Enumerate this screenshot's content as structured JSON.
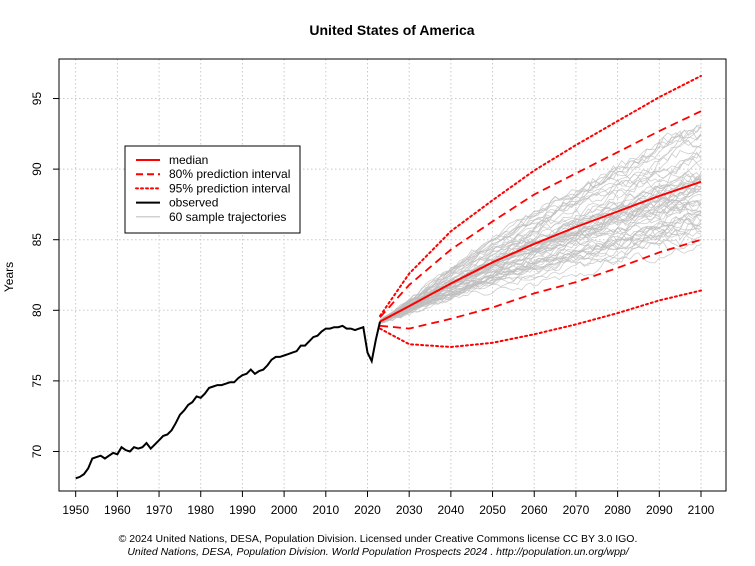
{
  "chart_data": {
    "type": "line",
    "title": "United States of America",
    "xlabel": "",
    "ylabel": "Years",
    "xlim": [
      1946,
      2106
    ],
    "ylim": [
      67.2,
      97.8
    ],
    "x_ticks": [
      1950,
      1960,
      1970,
      1980,
      1990,
      2000,
      2010,
      2020,
      2030,
      2040,
      2050,
      2060,
      2070,
      2080,
      2090,
      2100
    ],
    "y_ticks": [
      70,
      75,
      80,
      85,
      90,
      95
    ],
    "grid": true,
    "legend_position": "top-left",
    "legend": [
      {
        "label": "median",
        "color": "#ff0000",
        "style": "solid"
      },
      {
        "label": "80% prediction interval",
        "color": "#ff0000",
        "style": "dashed"
      },
      {
        "label": "95% prediction interval",
        "color": "#ff0000",
        "style": "dotted"
      },
      {
        "label": "observed",
        "color": "#000000",
        "style": "solid"
      },
      {
        "label": "60 sample trajectories",
        "color": "#c0c0c0",
        "style": "solid"
      }
    ],
    "observed": {
      "x": [
        1950,
        1951,
        1952,
        1953,
        1954,
        1955,
        1956,
        1957,
        1958,
        1959,
        1960,
        1961,
        1962,
        1963,
        1964,
        1965,
        1966,
        1967,
        1968,
        1969,
        1970,
        1971,
        1972,
        1973,
        1974,
        1975,
        1976,
        1977,
        1978,
        1979,
        1980,
        1981,
        1982,
        1983,
        1984,
        1985,
        1986,
        1987,
        1988,
        1989,
        1990,
        1991,
        1992,
        1993,
        1994,
        1995,
        1996,
        1997,
        1998,
        1999,
        2000,
        2001,
        2002,
        2003,
        2004,
        2005,
        2006,
        2007,
        2008,
        2009,
        2010,
        2011,
        2012,
        2013,
        2014,
        2015,
        2016,
        2017,
        2018,
        2019,
        2020,
        2021,
        2022,
        2023
      ],
      "y": [
        68.1,
        68.2,
        68.4,
        68.8,
        69.5,
        69.6,
        69.7,
        69.5,
        69.7,
        69.9,
        69.8,
        70.3,
        70.1,
        70.0,
        70.3,
        70.2,
        70.3,
        70.6,
        70.2,
        70.5,
        70.8,
        71.1,
        71.2,
        71.5,
        72.0,
        72.6,
        72.9,
        73.3,
        73.5,
        73.9,
        73.8,
        74.1,
        74.5,
        74.6,
        74.7,
        74.7,
        74.8,
        74.9,
        74.9,
        75.2,
        75.4,
        75.5,
        75.8,
        75.5,
        75.7,
        75.8,
        76.1,
        76.5,
        76.7,
        76.7,
        76.8,
        76.9,
        77.0,
        77.1,
        77.5,
        77.5,
        77.8,
        78.1,
        78.2,
        78.5,
        78.7,
        78.7,
        78.8,
        78.8,
        78.9,
        78.7,
        78.7,
        78.6,
        78.7,
        78.8,
        77.0,
        76.4,
        77.9,
        79.2
      ]
    },
    "median": {
      "x": [
        2023,
        2030,
        2040,
        2050,
        2060,
        2070,
        2080,
        2090,
        2100
      ],
      "y": [
        79.2,
        80.3,
        81.9,
        83.4,
        84.7,
        85.9,
        87.0,
        88.1,
        89.1
      ]
    },
    "pi80_upper": {
      "x": [
        2023,
        2030,
        2040,
        2050,
        2060,
        2070,
        2080,
        2090,
        2100
      ],
      "y": [
        79.5,
        81.8,
        84.3,
        86.3,
        88.2,
        89.7,
        91.2,
        92.7,
        94.1
      ]
    },
    "pi80_lower": {
      "x": [
        2023,
        2030,
        2040,
        2050,
        2060,
        2070,
        2080,
        2090,
        2100
      ],
      "y": [
        78.9,
        78.7,
        79.4,
        80.2,
        81.2,
        82.0,
        83.0,
        84.1,
        85.0
      ]
    },
    "pi95_upper": {
      "x": [
        2023,
        2030,
        2040,
        2050,
        2060,
        2070,
        2080,
        2090,
        2100
      ],
      "y": [
        79.6,
        82.6,
        85.6,
        87.8,
        89.9,
        91.7,
        93.4,
        95.1,
        96.6
      ]
    },
    "pi95_lower": {
      "x": [
        2023,
        2030,
        2040,
        2050,
        2060,
        2070,
        2080,
        2090,
        2100
      ],
      "y": [
        78.7,
        77.6,
        77.4,
        77.7,
        78.3,
        79.0,
        79.8,
        80.7,
        81.4
      ]
    },
    "sample_trajectory_count": 60
  },
  "footer": {
    "line1": "© 2024 United Nations, DESA, Population Division. Licensed under Creative Commons license CC BY 3.0 IGO.",
    "line2": "United Nations, DESA, Population Division. World Population Prospects 2024 . http://population.un.org/wpp/"
  }
}
